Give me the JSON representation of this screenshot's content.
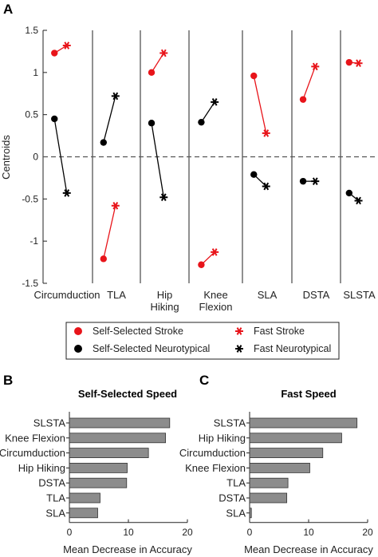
{
  "panels": {
    "a": "A",
    "b": "B",
    "c": "C"
  },
  "chart_data": [
    {
      "type": "scatter",
      "panel": "A",
      "ylabel": "Centroids",
      "ylim": [
        -1.5,
        1.5
      ],
      "yticks": [
        "1.5",
        "1",
        "0.5",
        "0",
        "-0.5",
        "-1",
        "-1.5"
      ],
      "groups": [
        {
          "label": "Circumduction",
          "stroke": [
            1.23,
            1.32
          ],
          "neurotypical": [
            0.45,
            -0.43
          ]
        },
        {
          "label": "TLA",
          "stroke": [
            -1.21,
            -0.58
          ],
          "neurotypical": [
            0.17,
            0.72
          ]
        },
        {
          "label": "Hip\nHiking",
          "stroke": [
            1.0,
            1.23
          ],
          "neurotypical": [
            0.4,
            -0.48
          ]
        },
        {
          "label": "Knee\nFlexion",
          "stroke": [
            -1.28,
            -1.13
          ],
          "neurotypical": [
            0.41,
            0.65
          ]
        },
        {
          "label": "SLA",
          "stroke": [
            0.96,
            0.28
          ],
          "neurotypical": [
            -0.21,
            -0.35
          ]
        },
        {
          "label": "DSTA",
          "stroke": [
            0.68,
            1.07
          ],
          "neurotypical": [
            -0.29,
            -0.29
          ]
        },
        {
          "label": "SLSTA",
          "stroke": [
            1.12,
            1.11
          ],
          "neurotypical": [
            -0.43,
            -0.52
          ]
        }
      ],
      "legend": [
        {
          "label": "Self-Selected Stroke",
          "color": "#e8141a",
          "marker": "circle"
        },
        {
          "label": "Fast Stroke",
          "color": "#e8141a",
          "marker": "star"
        },
        {
          "label": "Self-Selected Neurotypical",
          "color": "#000000",
          "marker": "circle"
        },
        {
          "label": "Fast Neurotypical",
          "color": "#000000",
          "marker": "star"
        }
      ],
      "colors": {
        "stroke": "#e8141a",
        "neurotypical": "#000000"
      },
      "legend_position": "bottom"
    },
    {
      "type": "bar",
      "panel": "B",
      "title": "Self-Selected Speed",
      "orientation": "horizontal",
      "categories": [
        "SLSTA",
        "Knee Flexion",
        "Circumduction",
        "Hip Hiking",
        "DSTA",
        "TLA",
        "SLA"
      ],
      "values": [
        17.0,
        16.3,
        13.4,
        9.8,
        9.7,
        5.2,
        4.8
      ],
      "xlabel": "Mean Decrease in Accuracy",
      "xlim": [
        0,
        20
      ],
      "xticks": [
        "0",
        "10",
        "20"
      ],
      "bar_color": "#8c8c8c"
    },
    {
      "type": "bar",
      "panel": "C",
      "title": "Fast Speed",
      "orientation": "horizontal",
      "categories": [
        "SLSTA",
        "Hip Hiking",
        "Circumduction",
        "Knee Flexion",
        "TLA",
        "DSTA",
        "SLA"
      ],
      "values": [
        18.2,
        15.6,
        12.4,
        10.2,
        6.5,
        6.3,
        0.3
      ],
      "xlabel": "Mean Decrease in Accuracy",
      "xlim": [
        0,
        20
      ],
      "xticks": [
        "0",
        "10",
        "20"
      ],
      "bar_color": "#8c8c8c"
    }
  ]
}
